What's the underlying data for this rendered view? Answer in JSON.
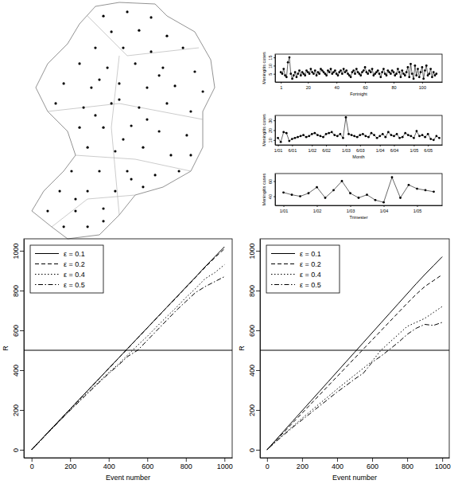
{
  "chart_data": [
    {
      "type": "map",
      "tick_labels": false,
      "marker": "circle",
      "color": "#000000",
      "xlim": [
        0,
        1
      ],
      "ylim": [
        0,
        1
      ],
      "x": [
        0.396,
        0.521,
        0.646,
        0.438,
        0.583,
        0.729,
        0.354,
        0.5,
        0.646,
        0.813,
        0.271,
        0.417,
        0.563,
        0.708,
        0.875,
        0.188,
        0.333,
        0.479,
        0.625,
        0.771,
        0.917,
        0.146,
        0.292,
        0.438,
        0.583,
        0.729,
        0.854,
        0.271,
        0.396,
        0.542,
        0.688,
        0.833,
        0.313,
        0.458,
        0.604,
        0.75,
        0.854,
        0.229,
        0.375,
        0.521,
        0.667,
        0.792,
        0.167,
        0.313,
        0.458,
        0.604,
        0.104,
        0.25,
        0.396,
        0.188,
        0.313,
        0.396,
        0.479,
        0.354,
        0.625,
        0.5,
        0.25,
        0.542,
        0.688,
        0.375
      ],
      "y": [
        0.934,
        0.951,
        0.928,
        0.869,
        0.875,
        0.852,
        0.803,
        0.803,
        0.787,
        0.803,
        0.738,
        0.721,
        0.738,
        0.721,
        0.705,
        0.656,
        0.639,
        0.656,
        0.639,
        0.646,
        0.623,
        0.574,
        0.557,
        0.574,
        0.557,
        0.574,
        0.541,
        0.475,
        0.475,
        0.482,
        0.459,
        0.443,
        0.393,
        0.377,
        0.393,
        0.361,
        0.361,
        0.295,
        0.295,
        0.295,
        0.279,
        0.295,
        0.213,
        0.213,
        0.213,
        0.23,
        0.131,
        0.131,
        0.141,
        0.066,
        0.066,
        0.089,
        0.59,
        0.525,
        0.508,
        0.426,
        0.18,
        0.262,
        0.689,
        0.672
      ]
    },
    {
      "type": "line",
      "marker": "circle",
      "line_style": "solid",
      "color": "#000000",
      "xlabel": "Fortnight",
      "ylabel": "Meningitis cases",
      "xlim": [
        -3,
        114
      ],
      "xticks": [
        1,
        20,
        40,
        60,
        80,
        100
      ],
      "ylim": [
        0,
        17
      ],
      "yticks": [
        5,
        10,
        15
      ],
      "x": [
        1,
        2,
        3,
        4,
        5,
        6,
        7,
        8,
        9,
        10,
        11,
        12,
        13,
        14,
        15,
        16,
        17,
        18,
        19,
        20,
        21,
        22,
        23,
        24,
        25,
        26,
        27,
        28,
        29,
        30,
        31,
        32,
        33,
        34,
        35,
        36,
        37,
        38,
        39,
        40,
        41,
        42,
        43,
        44,
        45,
        46,
        47,
        48,
        49,
        50,
        51,
        52,
        53,
        54,
        55,
        56,
        57,
        58,
        59,
        60,
        61,
        62,
        63,
        64,
        65,
        66,
        67,
        68,
        69,
        70,
        71,
        72,
        73,
        74,
        75,
        76,
        77,
        78,
        79,
        80,
        81,
        82,
        83,
        84,
        85,
        86,
        87,
        88,
        89,
        90,
        91,
        92,
        93,
        94,
        95,
        96,
        97,
        98,
        99,
        100,
        101,
        102,
        103,
        104,
        105,
        106,
        107,
        108,
        109,
        110
      ],
      "values": [
        6,
        5,
        8,
        4,
        3,
        12,
        15,
        5,
        2,
        4,
        6,
        3,
        5,
        7,
        4,
        6,
        5,
        4,
        7,
        6,
        5,
        8,
        6,
        5,
        7,
        4,
        6,
        5,
        8,
        7,
        6,
        5,
        4,
        7,
        6,
        8,
        5,
        6,
        7,
        5,
        4,
        6,
        7,
        5,
        8,
        6,
        7,
        5,
        4,
        3,
        6,
        7,
        5,
        8,
        6,
        5,
        4,
        6,
        7,
        9,
        6,
        5,
        7,
        6,
        8,
        4,
        5,
        6,
        7,
        5,
        3,
        6,
        8,
        5,
        4,
        7,
        6,
        5,
        7,
        6,
        4,
        5,
        8,
        6,
        3,
        7,
        5,
        4,
        6,
        9,
        3,
        11,
        5,
        2,
        10,
        4,
        8,
        3,
        6,
        9,
        2,
        7,
        10,
        4,
        5,
        8,
        3,
        6,
        4,
        5
      ]
    },
    {
      "type": "line",
      "marker": "circle",
      "line_style": "solid",
      "color": "#000000",
      "xlabel": "Month",
      "ylabel": "Meningitis cases",
      "ylim": [
        5,
        35
      ],
      "yticks": [
        10,
        20,
        30
      ],
      "categories": [
        "1/01",
        null,
        null,
        null,
        null,
        "6/01",
        null,
        null,
        null,
        null,
        null,
        null,
        "1/02",
        null,
        null,
        null,
        null,
        "6/02",
        null,
        null,
        null,
        null,
        null,
        null,
        "1/03",
        null,
        null,
        null,
        null,
        "6/03",
        null,
        null,
        null,
        null,
        null,
        null,
        "1/04",
        null,
        null,
        null,
        null,
        "6/04",
        null,
        null,
        null,
        null,
        null,
        null,
        "1/05",
        null,
        null,
        null,
        null,
        "6/05",
        null,
        null,
        null,
        null
      ],
      "values": [
        12,
        8,
        18,
        17,
        9,
        11,
        12,
        13,
        14,
        15,
        13,
        14,
        16,
        17,
        15,
        14,
        13,
        16,
        17,
        18,
        15,
        14,
        16,
        12,
        33,
        16,
        15,
        14,
        13,
        15,
        16,
        14,
        13,
        17,
        15,
        12,
        14,
        16,
        13,
        18,
        15,
        14,
        16,
        12,
        13,
        17,
        15,
        14,
        12,
        19,
        14,
        15,
        13,
        16,
        11,
        10,
        14,
        12
      ]
    },
    {
      "type": "line",
      "marker": "circle",
      "line_style": "solid",
      "color": "#000000",
      "xlabel": "Trimester",
      "ylabel": "Meningitis cases",
      "ylim": [
        28,
        70
      ],
      "yticks": [
        40,
        60
      ],
      "categories": [
        "1/01",
        null,
        null,
        null,
        "1/02",
        null,
        null,
        null,
        "1/03",
        null,
        null,
        null,
        "1/04",
        null,
        null,
        null,
        "1/05",
        null,
        null
      ],
      "values": [
        45,
        42,
        40,
        44,
        52,
        38,
        48,
        60,
        44,
        38,
        42,
        35,
        32,
        65,
        38,
        55,
        50,
        48,
        46
      ]
    },
    {
      "type": "line",
      "xlabel": "Event number",
      "ylabel": "R",
      "legend": "top-left",
      "xlim": [
        -40,
        1040
      ],
      "xticks": [
        0,
        200,
        400,
        600,
        800,
        1000
      ],
      "ylim": [
        -40,
        1060
      ],
      "yticks": [
        0,
        200,
        400,
        600,
        800,
        1000
      ],
      "reference_line": 500,
      "x": [
        0,
        50,
        100,
        150,
        200,
        250,
        300,
        350,
        400,
        450,
        500,
        550,
        600,
        650,
        700,
        750,
        800,
        850,
        900,
        950,
        1000
      ],
      "series": [
        {
          "name": "ε = 0.1",
          "color": "#000000",
          "line_style": "solid",
          "values": [
            0,
            52,
            103,
            154,
            205,
            256,
            307,
            358,
            409,
            460,
            511,
            562,
            613,
            664,
            715,
            766,
            817,
            868,
            920,
            970,
            1020
          ]
        },
        {
          "name": "ε = 0.2",
          "color": "#000000",
          "line_style": "dashed",
          "values": [
            0,
            51,
            102,
            153,
            204,
            255,
            306,
            357,
            408,
            459,
            510,
            561,
            612,
            663,
            714,
            764,
            815,
            866,
            917,
            965,
            1010
          ]
        },
        {
          "name": "ε = 0.4",
          "color": "#000000",
          "line_style": "dotted",
          "values": [
            0,
            50,
            100,
            150,
            200,
            248,
            296,
            342,
            388,
            430,
            478,
            525,
            570,
            620,
            668,
            715,
            765,
            810,
            860,
            890,
            930
          ]
        },
        {
          "name": "ε = 0.5",
          "color": "#000000",
          "line_style": "dotdash",
          "values": [
            0,
            50,
            100,
            150,
            198,
            245,
            292,
            338,
            383,
            425,
            470,
            500,
            550,
            600,
            650,
            700,
            745,
            790,
            820,
            845,
            870
          ]
        }
      ]
    },
    {
      "type": "line",
      "xlabel": "Event number",
      "ylabel": "R",
      "legend": "top-left",
      "xlim": [
        -40,
        1040
      ],
      "xticks": [
        0,
        200,
        400,
        600,
        800,
        1000
      ],
      "ylim": [
        -40,
        1060
      ],
      "yticks": [
        0,
        200,
        400,
        600,
        800,
        1000
      ],
      "reference_line": 500,
      "x": [
        0,
        50,
        100,
        150,
        200,
        250,
        300,
        350,
        400,
        450,
        500,
        550,
        600,
        650,
        700,
        750,
        800,
        850,
        900,
        950,
        1000
      ],
      "series": [
        {
          "name": "ε = 0.1",
          "color": "#000000",
          "line_style": "solid",
          "values": [
            0,
            49,
            98,
            147,
            196,
            245,
            294,
            343,
            392,
            441,
            490,
            539,
            588,
            637,
            686,
            735,
            784,
            833,
            880,
            925,
            970
          ]
        },
        {
          "name": "ε = 0.2",
          "color": "#000000",
          "line_style": "dashed",
          "values": [
            0,
            46,
            92,
            138,
            184,
            230,
            276,
            322,
            368,
            414,
            460,
            506,
            552,
            598,
            644,
            690,
            736,
            780,
            820,
            850,
            880
          ]
        },
        {
          "name": "ε = 0.4",
          "color": "#000000",
          "line_style": "dotted",
          "values": [
            0,
            42,
            82,
            120,
            158,
            195,
            232,
            268,
            305,
            340,
            375,
            410,
            445,
            500,
            540,
            580,
            620,
            640,
            660,
            690,
            720
          ]
        },
        {
          "name": "ε = 0.5",
          "color": "#000000",
          "line_style": "dotdash",
          "values": [
            0,
            40,
            78,
            115,
            150,
            185,
            220,
            255,
            290,
            322,
            355,
            385,
            440,
            470,
            505,
            540,
            580,
            610,
            630,
            625,
            640
          ]
        }
      ]
    }
  ]
}
